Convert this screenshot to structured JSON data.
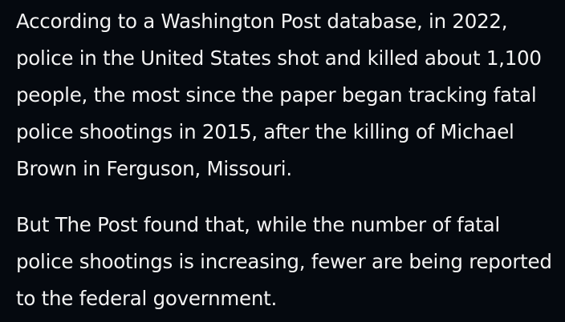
{
  "article": {
    "paragraphs": [
      "According to a Washington Post database, in 2022, police in the United States shot and killed about 1,100 people, the most since the paper began tracking fatal police shootings in 2015, after the killing of Michael Brown in Ferguson, Missouri.",
      "But The Post found that, while the number of fatal police shootings is increasing, fewer are being reported to the federal government."
    ]
  },
  "colors": {
    "background": "#05090f",
    "text": "#f2f2f2"
  }
}
